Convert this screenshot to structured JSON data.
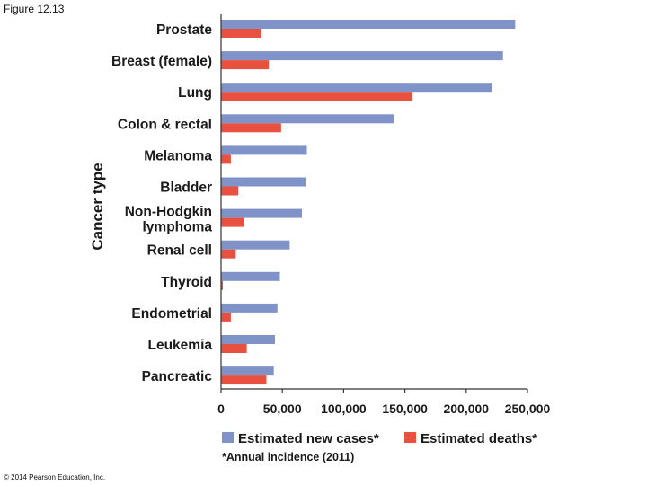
{
  "figure_label": "Figure 12.13",
  "copyright": "© 2014 Pearson Education, Inc.",
  "chart_data": {
    "type": "bar",
    "orientation": "horizontal",
    "categories": [
      "Prostate",
      "Breast (female)",
      "Lung",
      "Colon & rectal",
      "Melanoma",
      "Bladder",
      "Non-Hodgkin lymphoma",
      "Renal cell",
      "Thyroid",
      "Endometrial",
      "Leukemia",
      "Pancreatic"
    ],
    "category_lines": [
      [
        "Prostate"
      ],
      [
        "Breast (female)"
      ],
      [
        "Lung"
      ],
      [
        "Colon & rectal"
      ],
      [
        "Melanoma"
      ],
      [
        "Bladder"
      ],
      [
        "Non-Hodgkin",
        "lymphoma"
      ],
      [
        "Renal cell"
      ],
      [
        "Thyroid"
      ],
      [
        "Endometrial"
      ],
      [
        "Leukemia"
      ],
      [
        "Pancreatic"
      ]
    ],
    "series": [
      {
        "name": "Estimated new cases*",
        "color": "#7f93c8",
        "values": [
          240000,
          230000,
          221000,
          141000,
          70000,
          69000,
          66000,
          56000,
          48000,
          46000,
          44000,
          43000
        ]
      },
      {
        "name": "Estimated deaths*",
        "color": "#e8503f",
        "values": [
          33000,
          39000,
          156000,
          49000,
          8000,
          14000,
          19000,
          12000,
          1500,
          8000,
          21000,
          37000
        ]
      }
    ],
    "xlim": [
      0,
      250000
    ],
    "xticks": [
      0,
      50000,
      100000,
      150000,
      200000,
      250000
    ],
    "xtick_labels": [
      "0",
      "50,000",
      "100,000",
      "150,000",
      "200,000",
      "250,000"
    ],
    "xlabel": "",
    "ylabel": "Cancer type",
    "legend_position": "bottom",
    "footnote": "*Annual incidence (2011)",
    "grid": false
  }
}
